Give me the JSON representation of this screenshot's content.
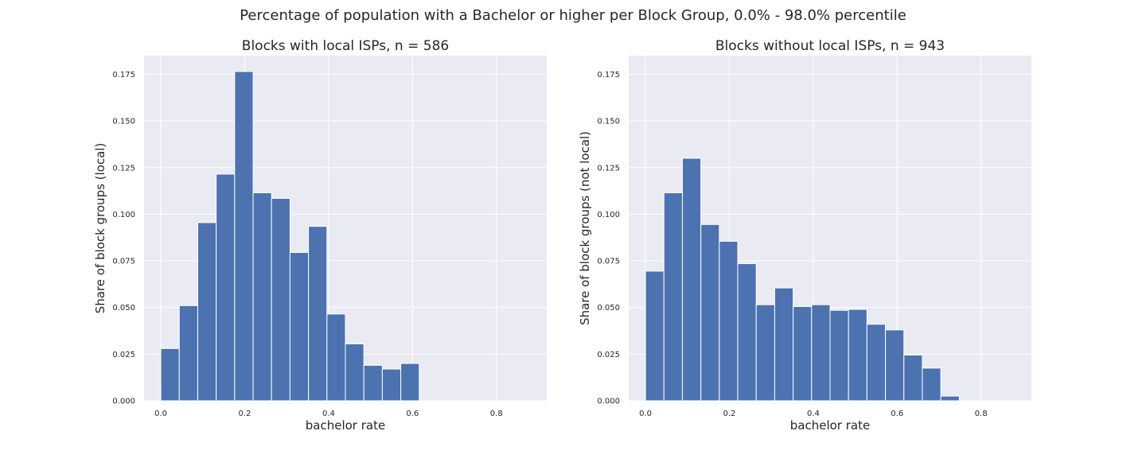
{
  "figure_title": "Percentage of population with a Bachelor or higher per Block Group, 0.0% - 98.0% percentile",
  "colors": {
    "bar": "#4c72b0",
    "axes_background": "#eaeaf2",
    "grid": "#ffffff"
  },
  "chart_data": [
    {
      "type": "bar",
      "title": "Blocks with local ISPs, n = 586",
      "xlabel": "bachelor rate",
      "ylabel": "Share of block groups (local)",
      "grid": true,
      "xlim": [
        -0.04,
        0.92
      ],
      "ylim": [
        0.0,
        0.185
      ],
      "xticks": [
        0.0,
        0.2,
        0.4,
        0.6,
        0.8
      ],
      "xtick_labels": [
        "0.0",
        "0.2",
        "0.4",
        "0.6",
        "0.8"
      ],
      "yticks": [
        0.0,
        0.025,
        0.05,
        0.075,
        0.1,
        0.125,
        0.15,
        0.175
      ],
      "ytick_labels": [
        "0.000",
        "0.025",
        "0.050",
        "0.075",
        "0.100",
        "0.125",
        "0.150",
        "0.175"
      ],
      "bin_width": 0.044,
      "bin_starts": [
        0.0,
        0.044,
        0.088,
        0.132,
        0.176,
        0.22,
        0.264,
        0.308,
        0.352,
        0.396,
        0.44,
        0.484,
        0.528,
        0.572
      ],
      "values": [
        0.028,
        0.051,
        0.0955,
        0.1215,
        0.1765,
        0.1115,
        0.1085,
        0.0795,
        0.0935,
        0.0465,
        0.0305,
        0.019,
        0.017,
        0.02
      ]
    },
    {
      "type": "bar",
      "title": "Blocks without local ISPs, n = 943",
      "xlabel": "bachelor rate",
      "ylabel": "Share of block groups (not local)",
      "grid": true,
      "xlim": [
        -0.04,
        0.92
      ],
      "ylim": [
        0.0,
        0.185
      ],
      "xticks": [
        0.0,
        0.2,
        0.4,
        0.6,
        0.8
      ],
      "xtick_labels": [
        "0.0",
        "0.2",
        "0.4",
        "0.6",
        "0.8"
      ],
      "yticks": [
        0.0,
        0.025,
        0.05,
        0.075,
        0.1,
        0.125,
        0.15,
        0.175
      ],
      "ytick_labels": [
        "0.000",
        "0.025",
        "0.050",
        "0.075",
        "0.100",
        "0.125",
        "0.150",
        "0.175"
      ],
      "bin_width": 0.044,
      "bin_starts": [
        0.0,
        0.044,
        0.088,
        0.132,
        0.176,
        0.22,
        0.264,
        0.308,
        0.352,
        0.396,
        0.44,
        0.484,
        0.528,
        0.572,
        0.616,
        0.66,
        0.704
      ],
      "values": [
        0.0695,
        0.1115,
        0.13,
        0.0945,
        0.0855,
        0.0735,
        0.0515,
        0.0605,
        0.0505,
        0.0515,
        0.0485,
        0.049,
        0.041,
        0.038,
        0.0245,
        0.0175,
        0.0025
      ]
    }
  ]
}
